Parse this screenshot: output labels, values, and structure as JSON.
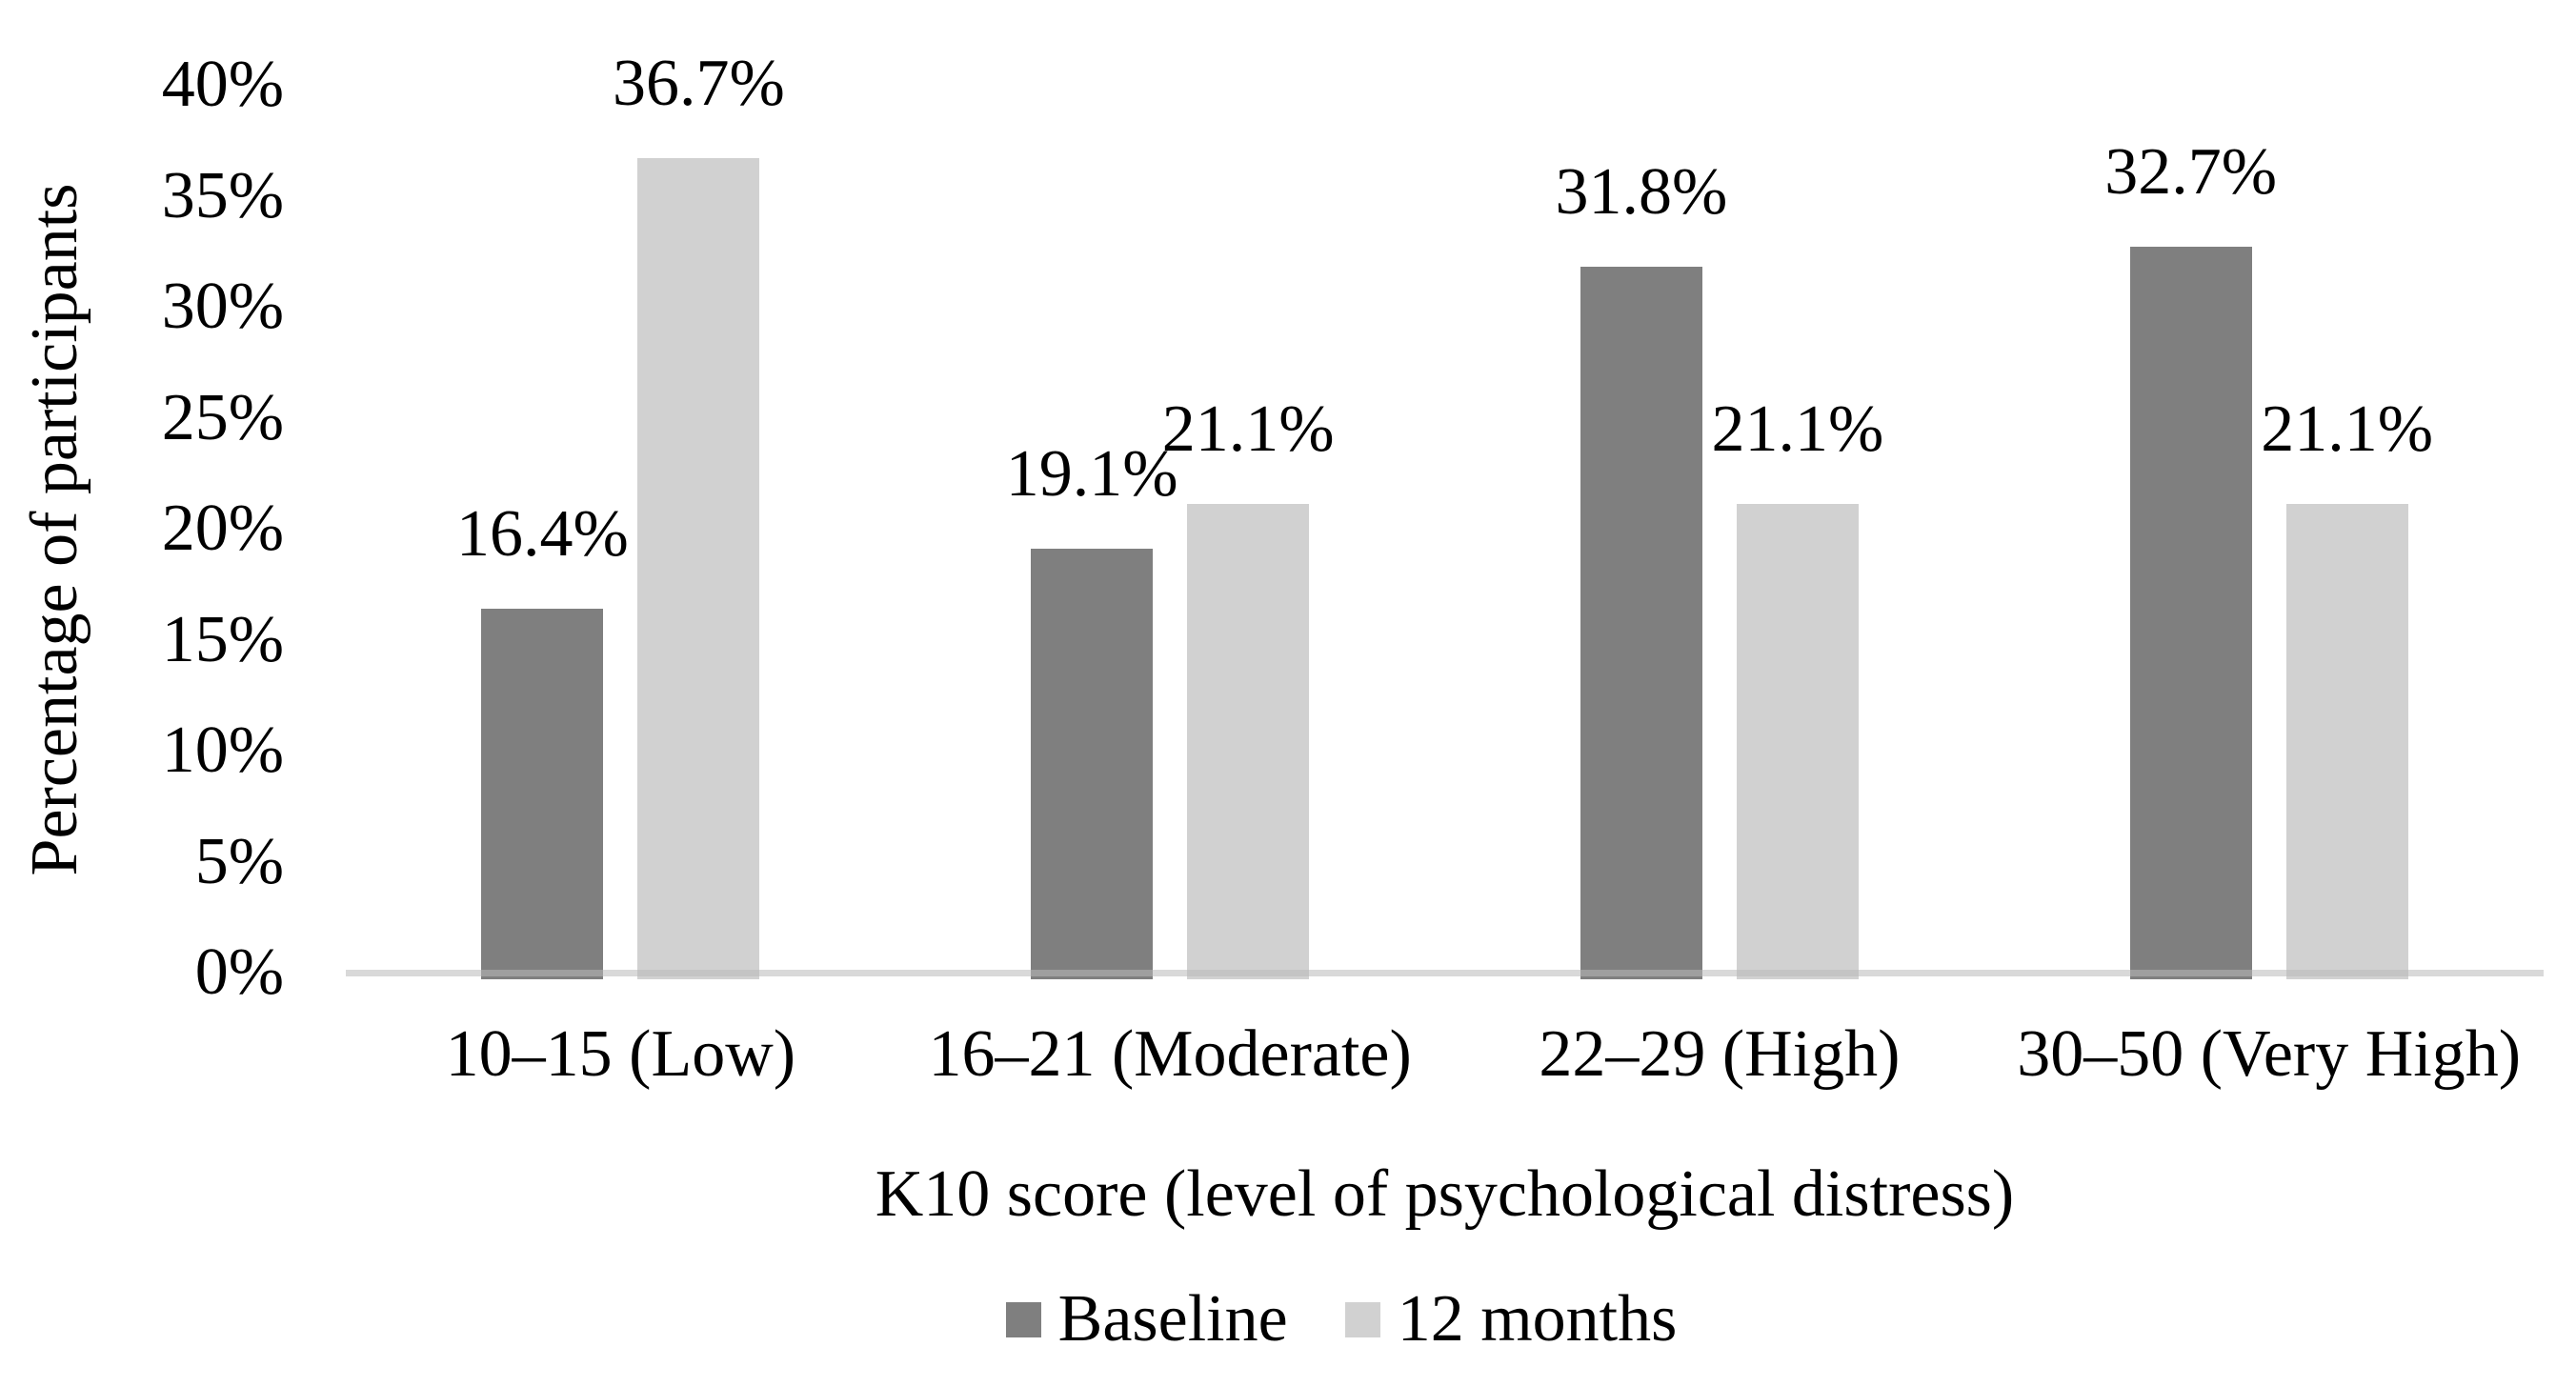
{
  "chart_data": {
    "type": "bar",
    "title": "",
    "xlabel": "K10 score (level of psychological distress)",
    "ylabel": "Percentage of participants",
    "categories": [
      "10–15 (Low)",
      "16–21 (Moderate)",
      "22–29 (High)",
      "30–50 (Very High)"
    ],
    "series": [
      {
        "name": "Baseline",
        "color": "#7f7f7f",
        "values": [
          16.4,
          19.1,
          31.8,
          32.7
        ],
        "value_labels": [
          "16.4%",
          "19.1%",
          "31.8%",
          "32.7%"
        ]
      },
      {
        "name": "12 months",
        "color": "#d1d1d1",
        "values": [
          36.7,
          21.1,
          21.1,
          21.1
        ],
        "value_labels": [
          "36.7%",
          "21.1%",
          "21.1%",
          "21.1%"
        ]
      }
    ],
    "y_axis": {
      "min": 0,
      "max": 40,
      "step": 5,
      "tick_labels": [
        "0%",
        "5%",
        "10%",
        "15%",
        "20%",
        "25%",
        "30%",
        "35%",
        "40%"
      ],
      "axis_line_color": "#d9d9d9"
    },
    "legend": {
      "position": "bottom",
      "entries": [
        "Baseline",
        "12 months"
      ]
    },
    "grid": false,
    "text_color": "#000000",
    "background_color": "#ffffff"
  }
}
